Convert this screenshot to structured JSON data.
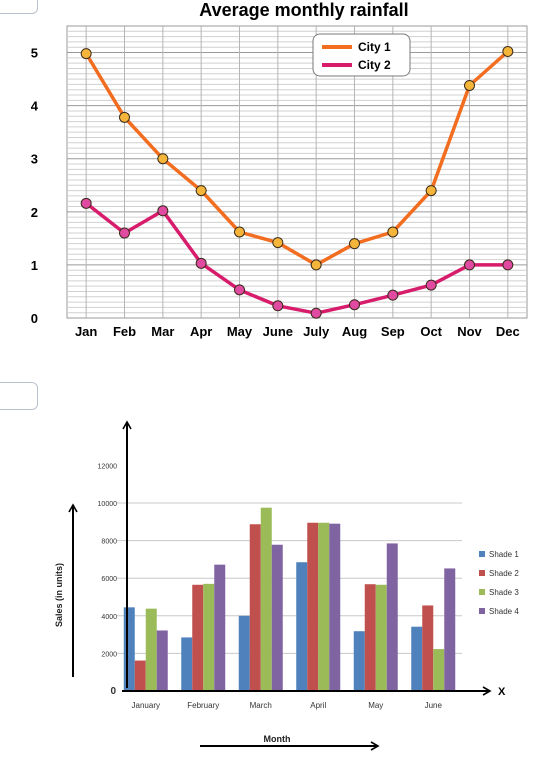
{
  "colors": {
    "city1": "#f26d1f",
    "city2": "#d81c6c",
    "marker_city1": "#f5b53a",
    "marker_city2": "#e04aa0",
    "shade1": "#4f81bd",
    "shade2": "#c0504d",
    "shade3": "#9bbb59",
    "shade4": "#8064a2"
  },
  "chart_data": [
    {
      "type": "line",
      "title": "Average monthly rainfall",
      "xlabel": "",
      "ylabel": "",
      "categories": [
        "Jan",
        "Feb",
        "Mar",
        "Apr",
        "May",
        "June",
        "July",
        "Aug",
        "Sep",
        "Oct",
        "Nov",
        "Dec"
      ],
      "ylim": [
        0,
        5.5
      ],
      "yticks": [
        "0",
        "1",
        "2",
        "3",
        "4",
        "5"
      ],
      "grid": true,
      "legend": "top-right",
      "series": [
        {
          "name": "City 1",
          "values": [
            4.98,
            3.78,
            3.0,
            2.4,
            1.62,
            1.42,
            1.0,
            1.4,
            1.62,
            2.4,
            4.38,
            5.02
          ]
        },
        {
          "name": "City 2",
          "values": [
            2.16,
            1.6,
            2.02,
            1.03,
            0.53,
            0.23,
            0.09,
            0.25,
            0.43,
            0.62,
            1.0,
            1.0
          ]
        }
      ]
    },
    {
      "type": "bar",
      "title": "",
      "xlabel": "Month",
      "ylabel": "Sales (in units)",
      "x_arrow_label": "X",
      "categories": [
        "January",
        "February",
        "March",
        "April",
        "May",
        "June"
      ],
      "ylim": [
        0,
        12000
      ],
      "yticks": [
        "0",
        "2000",
        "4000",
        "6000",
        "8000",
        "10000",
        "12000"
      ],
      "grid": true,
      "legend": "right",
      "series": [
        {
          "name": "Shade 1",
          "values": [
            4450,
            2850,
            4000,
            6850,
            3180,
            3420
          ]
        },
        {
          "name": "Shade 2",
          "values": [
            1620,
            5650,
            8870,
            8950,
            5680,
            4550
          ]
        },
        {
          "name": "Shade 3",
          "values": [
            4380,
            5700,
            9750,
            8950,
            5650,
            2230
          ]
        },
        {
          "name": "Shade 4",
          "values": [
            3220,
            6720,
            7780,
            8900,
            7850,
            6520
          ]
        }
      ]
    }
  ]
}
